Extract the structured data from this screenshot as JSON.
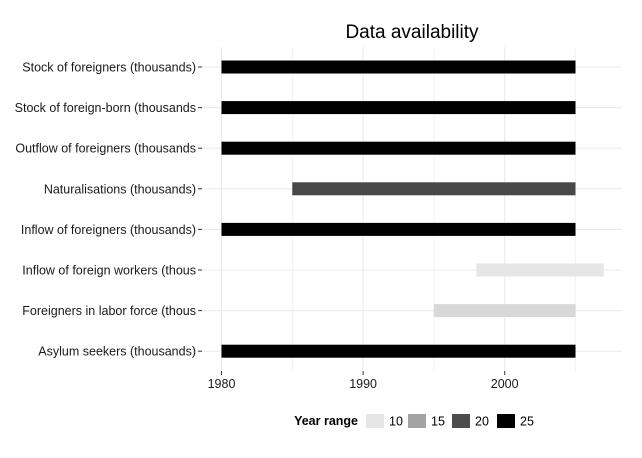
{
  "chart_data": {
    "type": "bar",
    "orientation": "horizontal-range",
    "title": "Data availability",
    "xlabel": "",
    "ylabel": "",
    "xlim": [
      1980,
      2008
    ],
    "x_ticks": [
      1980,
      1990,
      2000
    ],
    "categories": [
      "Stock of foreigners (thousands)",
      "Stock of foreign-born (thousands",
      "Outflow of foreigners (thousands",
      "Naturalisations (thousands)",
      "Inflow of foreigners (thousands)",
      "Inflow of foreign workers (thous",
      "Foreigners in labor force (thous",
      "Asylum seekers (thousands)"
    ],
    "ranges": [
      {
        "start": 1980,
        "end": 2005,
        "year_range": 25
      },
      {
        "start": 1980,
        "end": 2005,
        "year_range": 25
      },
      {
        "start": 1980,
        "end": 2005,
        "year_range": 25
      },
      {
        "start": 1985,
        "end": 2005,
        "year_range": 20
      },
      {
        "start": 1980,
        "end": 2005,
        "year_range": 25
      },
      {
        "start": 1998,
        "end": 2007,
        "year_range": 9
      },
      {
        "start": 1995,
        "end": 2005,
        "year_range": 10
      },
      {
        "start": 1980,
        "end": 2005,
        "year_range": 25
      }
    ],
    "legend": {
      "title": "Year range",
      "position": "bottom",
      "entries": [
        {
          "label": "10",
          "color": "#e6e6e6"
        },
        {
          "label": "15",
          "color": "#a3a3a3"
        },
        {
          "label": "20",
          "color": "#4d4d4d"
        },
        {
          "label": "25",
          "color": "#000000"
        }
      ]
    },
    "colors": {
      "grid": "#ebebeb",
      "axis_text": "#1a1a1a",
      "scale_low": "#e6e6e6",
      "scale_high": "#000000",
      "scale_min": 9,
      "scale_max": 25
    }
  }
}
